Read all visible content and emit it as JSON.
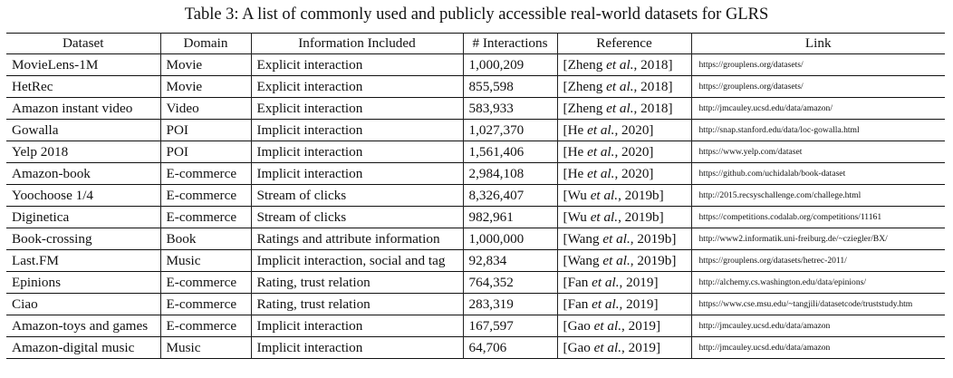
{
  "caption": "Table 3: A list of commonly used and publicly accessible real-world datasets for GLRS",
  "headers": [
    "Dataset",
    "Domain",
    "Information Included",
    "# Interactions",
    "Reference",
    "Link"
  ],
  "rows": [
    {
      "dataset": "MovieLens-1M",
      "domain": "Movie",
      "info": "Explicit interaction",
      "interactions": "1,000,209",
      "ref_author": "Zheng",
      "ref_year": "2018",
      "link": "https://grouplens.org/datasets/"
    },
    {
      "dataset": "HetRec",
      "domain": "Movie",
      "info": "Explicit interaction",
      "interactions": "855,598",
      "ref_author": "Zheng",
      "ref_year": "2018",
      "link": "https://grouplens.org/datasets/"
    },
    {
      "dataset": "Amazon instant video",
      "domain": "Video",
      "info": "Explicit interaction",
      "interactions": "583,933",
      "ref_author": "Zheng",
      "ref_year": "2018",
      "link": "http://jmcauley.ucsd.edu/data/amazon/"
    },
    {
      "dataset": "Gowalla",
      "domain": "POI",
      "info": "Implicit interaction",
      "interactions": "1,027,370",
      "ref_author": "He",
      "ref_year": "2020",
      "link": "http://snap.stanford.edu/data/loc-gowalla.html"
    },
    {
      "dataset": "Yelp 2018",
      "domain": "POI",
      "info": "Implicit interaction",
      "interactions": "1,561,406",
      "ref_author": "He",
      "ref_year": "2020",
      "link": "https://www.yelp.com/dataset"
    },
    {
      "dataset": "Amazon-book",
      "domain": "E-commerce",
      "info": "Implicit interaction",
      "interactions": "2,984,108",
      "ref_author": "He",
      "ref_year": "2020",
      "link": "https://github.com/uchidalab/book-dataset"
    },
    {
      "dataset": "Yoochoose 1/4",
      "domain": "E-commerce",
      "info": "Stream of clicks",
      "interactions": "8,326,407",
      "ref_author": "Wu",
      "ref_year": "2019b",
      "link": "http://2015.recsyschallenge.com/challege.html"
    },
    {
      "dataset": "Diginetica",
      "domain": "E-commerce",
      "info": "Stream of clicks",
      "interactions": "982,961",
      "ref_author": "Wu",
      "ref_year": "2019b",
      "link": "https://competitions.codalab.org/competitions/11161"
    },
    {
      "dataset": "Book-crossing",
      "domain": "Book",
      "info": "Ratings and attribute information",
      "interactions": "1,000,000",
      "ref_author": "Wang",
      "ref_year": "2019b",
      "link": "http://www2.informatik.uni-freiburg.de/~cziegler/BX/"
    },
    {
      "dataset": "Last.FM",
      "domain": "Music",
      "info": "Implicit interaction, social and tag",
      "interactions": "92,834",
      "ref_author": "Wang",
      "ref_year": "2019b",
      "link": "https://grouplens.org/datasets/hetrec-2011/"
    },
    {
      "dataset": "Epinions",
      "domain": "E-commerce",
      "info": "Rating, trust relation",
      "interactions": "764,352",
      "ref_author": "Fan",
      "ref_year": "2019",
      "link": "http://alchemy.cs.washington.edu/data/epinions/"
    },
    {
      "dataset": "Ciao",
      "domain": "E-commerce",
      "info": "Rating, trust relation",
      "interactions": "283,319",
      "ref_author": "Fan",
      "ref_year": "2019",
      "link": "https://www.cse.msu.edu/~tangjili/datasetcode/truststudy.htm"
    },
    {
      "dataset": "Amazon-toys and games",
      "domain": "E-commerce",
      "info": "Implicit interaction",
      "interactions": "167,597",
      "ref_author": "Gao",
      "ref_year": "2019",
      "link": "http://jmcauley.ucsd.edu/data/amazon"
    },
    {
      "dataset": "Amazon-digital music",
      "domain": "Music",
      "info": "Implicit interaction",
      "interactions": "64,706",
      "ref_author": "Gao",
      "ref_year": "2019",
      "link": "http://jmcauley.ucsd.edu/data/amazon"
    }
  ]
}
